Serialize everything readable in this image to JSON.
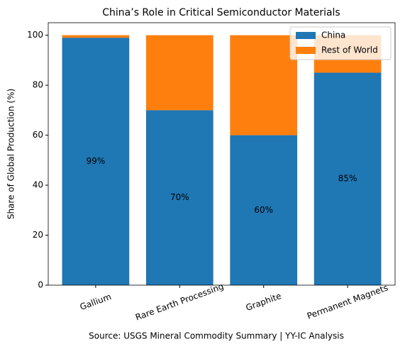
{
  "chart_data": {
    "type": "stacked_bar",
    "title": "China’s Role in Critical Semiconductor Materials",
    "ylabel": "Share of Global Production (%)",
    "source": "Source: USGS Mineral Commodity Summary | YY-IC Analysis",
    "categories": [
      "Gallium",
      "Rare Earth Processing",
      "Graphite",
      "Permanent Magnets"
    ],
    "series": [
      {
        "name": "China",
        "color": "#1f77b4",
        "values": [
          99,
          70,
          60,
          85
        ],
        "value_labels": [
          "99%",
          "70%",
          "60%",
          "85%"
        ]
      },
      {
        "name": "Rest of World",
        "color": "#ff7f0e",
        "values": [
          1,
          30,
          40,
          15
        ]
      }
    ],
    "ylim": [
      0,
      105
    ],
    "yticks": [
      0,
      20,
      40,
      60,
      80,
      100
    ],
    "legend": "upper right"
  }
}
